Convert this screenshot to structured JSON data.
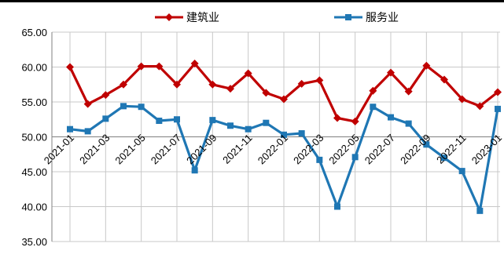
{
  "chart_data": {
    "type": "line",
    "x": [
      "2021-01",
      "2021-02",
      "2021-03",
      "2021-04",
      "2021-05",
      "2021-06",
      "2021-07",
      "2021-08",
      "2021-09",
      "2021-10",
      "2021-11",
      "2021-12",
      "2022-01",
      "2022-02",
      "2022-03",
      "2022-04",
      "2022-05",
      "2022-06",
      "2022-07",
      "2022-08",
      "2022-09",
      "2022-10",
      "2022-11",
      "2022-12",
      "2023-01"
    ],
    "x_tick_labels": [
      "2021-01",
      "2021-03",
      "2021-05",
      "2021-07",
      "2021-09",
      "2021-11",
      "2022-01",
      "2022-03",
      "2022-05",
      "2022-07",
      "2022-09",
      "2022-11",
      "2023-01"
    ],
    "y_tick_labels": [
      "35.00",
      "40.00",
      "45.00",
      "50.00",
      "55.00",
      "60.00",
      "65.00"
    ],
    "ylim": [
      35,
      65
    ],
    "x_axis_crosses_at": 50,
    "grid": "vertical-and-horizontal",
    "legend_position": "top",
    "series": [
      {
        "name": "建筑业",
        "color": "#C00000",
        "marker": "diamond",
        "values": [
          60.0,
          54.7,
          56.0,
          57.5,
          60.1,
          60.1,
          57.5,
          60.5,
          57.5,
          56.9,
          59.1,
          56.3,
          55.4,
          57.6,
          58.1,
          52.7,
          52.2,
          56.6,
          59.2,
          56.5,
          60.2,
          58.2,
          55.4,
          54.4,
          56.4
        ]
      },
      {
        "name": "服务业",
        "color": "#1F77B4",
        "marker": "square",
        "values": [
          51.1,
          50.8,
          52.6,
          54.4,
          54.3,
          52.3,
          52.5,
          45.2,
          52.4,
          51.6,
          51.1,
          52.0,
          50.3,
          50.5,
          46.7,
          40.0,
          47.1,
          54.3,
          52.8,
          51.9,
          48.9,
          47.0,
          45.1,
          39.4,
          54.0
        ]
      }
    ]
  }
}
